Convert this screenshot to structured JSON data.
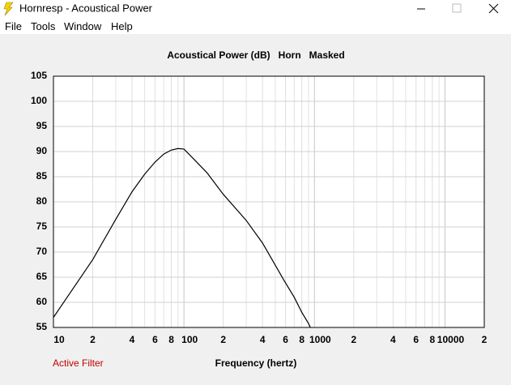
{
  "window": {
    "title": "Hornresp - Acoustical Power",
    "menu": [
      "File",
      "Tools",
      "Window",
      "Help"
    ],
    "status": "Active Filter"
  },
  "chart_data": {
    "type": "line",
    "title": "Acoustical Power (dB)   Horn   Masked",
    "x_label": "Frequency (hertz)",
    "x": [
      10,
      20,
      30,
      40,
      50,
      60,
      70,
      80,
      90,
      100,
      120,
      150,
      200,
      300,
      400,
      580,
      700,
      800,
      900,
      930
    ],
    "values": [
      57,
      68.5,
      76.5,
      82,
      85.5,
      87.9,
      89.5,
      90.3,
      90.6,
      90.5,
      88.4,
      85.8,
      81.5,
      76.3,
      71.8,
      64.5,
      61,
      58,
      55.8,
      55
    ],
    "color": "#000000",
    "x_log": true,
    "grid": true,
    "xlim": [
      10,
      20000
    ],
    "ylim": [
      55,
      105
    ],
    "xticks": [
      10,
      {
        "value": 20,
        "label": "2"
      },
      {
        "value": 40,
        "label": "4"
      },
      {
        "value": 60,
        "label": "6"
      },
      {
        "value": 80,
        "label": "8"
      },
      100,
      {
        "value": 200,
        "label": "2"
      },
      {
        "value": 400,
        "label": "4"
      },
      {
        "value": 600,
        "label": "6"
      },
      {
        "value": 800,
        "label": "8"
      },
      1000,
      {
        "value": 2000,
        "label": "2"
      },
      {
        "value": 4000,
        "label": "4"
      },
      {
        "value": 6000,
        "label": "6"
      },
      {
        "value": 8000,
        "label": "8"
      },
      10000,
      {
        "value": 20000,
        "label": "2"
      }
    ],
    "x_minor_ticks": [
      30,
      50,
      70,
      90,
      300,
      500,
      700,
      900,
      3000,
      5000,
      7000,
      9000
    ],
    "yticks": [
      55,
      60,
      65,
      70,
      75,
      80,
      85,
      90,
      95,
      100,
      105
    ]
  }
}
